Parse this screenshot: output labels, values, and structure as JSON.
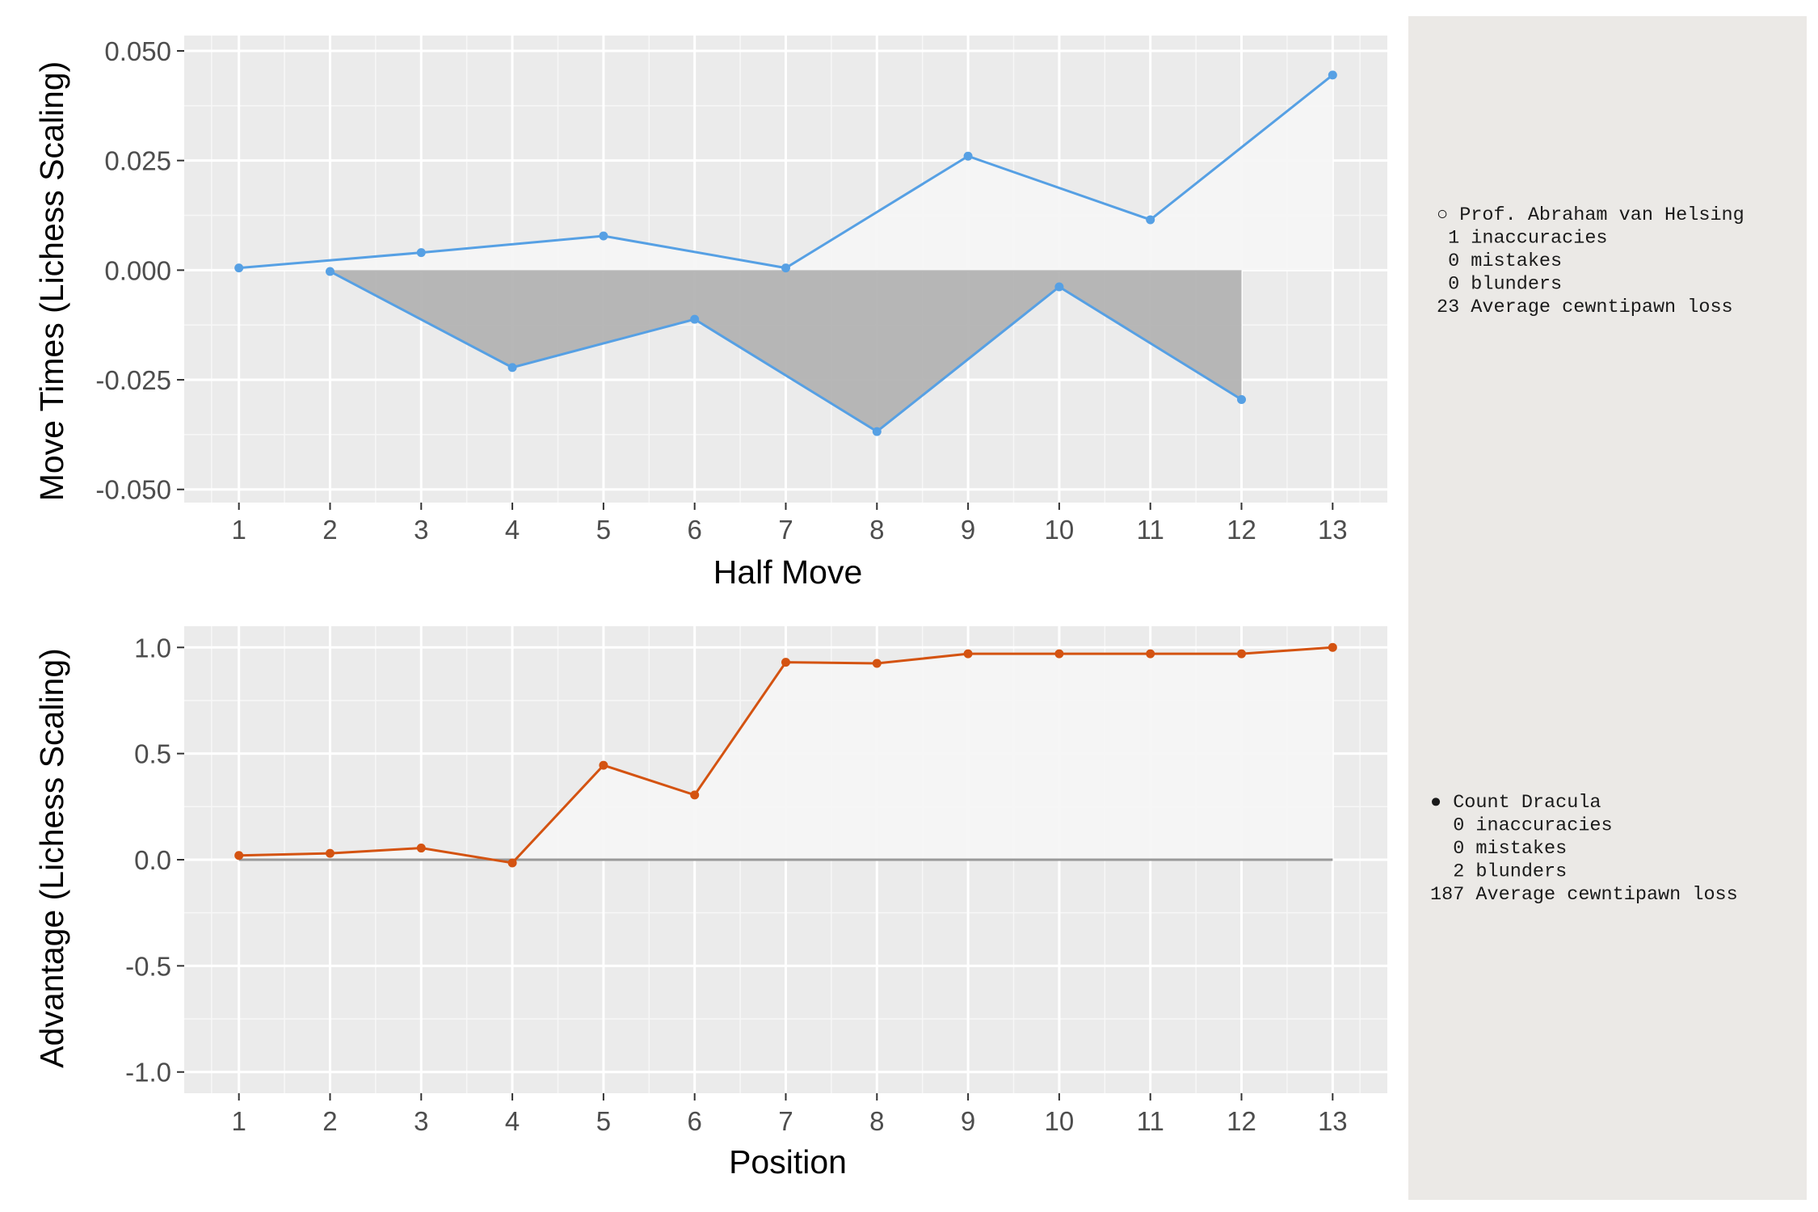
{
  "chart_data": [
    {
      "type": "line",
      "title": "",
      "xlabel": "Half Move",
      "ylabel": "Move Times (Lichess Scaling)",
      "x": [
        1,
        2,
        3,
        4,
        5,
        6,
        7,
        8,
        9,
        10,
        11,
        12,
        13
      ],
      "xlim": [
        0.4,
        13.6
      ],
      "ylim": [
        -0.053,
        0.0535
      ],
      "yticks": [
        "0.050",
        "0.025",
        "0.000",
        "-0.025",
        "-0.050"
      ],
      "ytick_values": [
        0.05,
        0.025,
        0,
        -0.025,
        -0.05
      ],
      "series": [
        {
          "name": "Prof. Abraham van Helsing",
          "x": [
            1,
            3,
            5,
            7,
            9,
            11,
            13
          ],
          "values": [
            0.0005,
            0.004,
            0.0078,
            0.0005,
            0.026,
            0.0115,
            0.0445
          ],
          "fill": "#f5f5f5"
        },
        {
          "name": "Count Dracula",
          "x": [
            2,
            4,
            6,
            8,
            10,
            12
          ],
          "values": [
            -0.0003,
            -0.0222,
            -0.0112,
            -0.0368,
            -0.0038,
            -0.0295
          ],
          "fill": "#b3b3b3"
        }
      ],
      "line_color": "#56a0e4",
      "grid": true,
      "panel_bg": "#ebebeb"
    },
    {
      "type": "line",
      "title": "",
      "xlabel": "Position",
      "ylabel": "Advantage (Lichess Scaling)",
      "x": [
        1,
        2,
        3,
        4,
        5,
        6,
        7,
        8,
        9,
        10,
        11,
        12,
        13
      ],
      "xlim": [
        0.4,
        13.6
      ],
      "ylim": [
        -1.1,
        1.1
      ],
      "yticks": [
        "1.0",
        "0.5",
        "0.0",
        "-0.5",
        "-1.0"
      ],
      "ytick_values": [
        1,
        0.5,
        0,
        -0.5,
        -1
      ],
      "series": [
        {
          "name": "Advantage",
          "values": [
            0.02,
            0.03,
            0.055,
            -0.015,
            0.445,
            0.305,
            0.93,
            0.925,
            0.97,
            0.97,
            0.97,
            0.97,
            1.0
          ]
        }
      ],
      "line_color": "#d45311",
      "baseline_color": "#999999",
      "grid": true,
      "panel_bg": "#ebebeb"
    }
  ],
  "legend": {
    "bg": "#ebe9e6",
    "white": {
      "marker": "○",
      "lines": [
        "○ Prof. Abraham van Helsing",
        " 1 inaccuracies",
        " 0 mistakes",
        " 0 blunders",
        "23 Average cewntipawn loss"
      ]
    },
    "black": {
      "marker": "●",
      "lines": [
        "● Count Dracula",
        "  0 inaccuracies",
        "  0 mistakes",
        "  2 blunders",
        "187 Average cewntipawn loss"
      ]
    }
  }
}
